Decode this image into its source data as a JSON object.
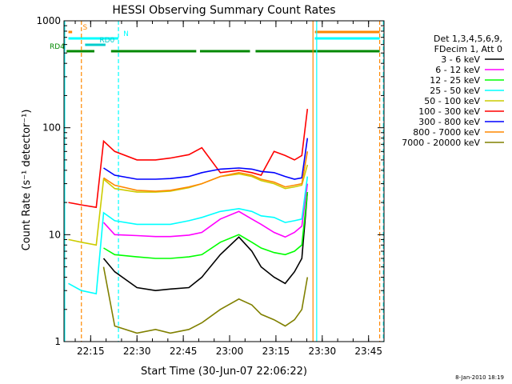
{
  "chart_data": {
    "type": "line",
    "title": "HESSI Observing Summary Count Rates",
    "xlabel": "Start Time (30-Jun-07 22:06:22)",
    "ylabel": "Count Rate (s⁻¹ detector⁻¹)",
    "xlim": [
      22.1061,
      23.8333
    ],
    "ylim": [
      1,
      1000
    ],
    "yscale": "log",
    "x_ticks": [
      "22:15",
      "22:30",
      "22:45",
      "23:00",
      "23:15",
      "23:30",
      "23:45"
    ],
    "x_tick_values": [
      22.25,
      22.5,
      22.75,
      23.0,
      23.25,
      23.5,
      23.75
    ],
    "y_ticks": [
      "1",
      "10",
      "100",
      "1000"
    ],
    "y_tick_values": [
      1,
      10,
      100,
      1000
    ],
    "legend": {
      "placement": "right",
      "header": [
        "Det 1,3,4,5,6,9,",
        "FDecim 1, Att 0"
      ]
    },
    "footer_date": "8-Jan-2010 18:19",
    "x": [
      22.13,
      22.2,
      22.28,
      22.32,
      22.38,
      22.5,
      22.6,
      22.68,
      22.78,
      22.85,
      22.95,
      23.05,
      23.12,
      23.17,
      23.24,
      23.3,
      23.35,
      23.39,
      23.42
    ],
    "series": [
      {
        "name": "3 - 6 keV",
        "color": "#000000",
        "values": [
          null,
          null,
          null,
          6.0,
          4.5,
          3.2,
          3.0,
          3.1,
          3.2,
          4.0,
          6.5,
          9.5,
          7.0,
          5.0,
          4.0,
          3.5,
          4.5,
          6.0,
          25.0
        ]
      },
      {
        "name": "6 - 12 keV",
        "color": "#ff00ff",
        "values": [
          null,
          null,
          null,
          13.0,
          10.0,
          9.8,
          9.6,
          9.6,
          9.9,
          10.5,
          14.0,
          16.5,
          14.0,
          12.5,
          10.5,
          9.5,
          10.5,
          12.0,
          30.0
        ]
      },
      {
        "name": "12 - 25 keV",
        "color": "#00ff00",
        "values": [
          null,
          null,
          null,
          7.5,
          6.5,
          6.2,
          6.0,
          6.0,
          6.2,
          6.5,
          8.5,
          10.0,
          8.5,
          7.5,
          6.8,
          6.5,
          7.0,
          8.0,
          25.0
        ]
      },
      {
        "name": "25 - 50 keV",
        "color": "#00ffff",
        "values": [
          3.5,
          3.0,
          2.8,
          16.0,
          13.5,
          12.5,
          12.5,
          12.5,
          13.5,
          14.5,
          16.5,
          17.5,
          16.5,
          15.0,
          14.5,
          13.0,
          13.5,
          14.0,
          35.0
        ]
      },
      {
        "name": "50 - 100 keV",
        "color": "#cccc00",
        "values": [
          9.0,
          8.5,
          8.0,
          33.0,
          27.0,
          25.0,
          25.0,
          25.5,
          27.5,
          30.0,
          35.0,
          37.0,
          35.0,
          32.0,
          30.0,
          27.0,
          28.0,
          29.0,
          45.0
        ]
      },
      {
        "name": "100 - 300 keV",
        "color": "#ff0000",
        "values": [
          20.0,
          19.0,
          18.0,
          75.0,
          60.0,
          50.0,
          50.0,
          52.0,
          56.0,
          65.0,
          38.0,
          40.0,
          38.0,
          36.0,
          60.0,
          55.0,
          50.0,
          55.0,
          150.0
        ]
      },
      {
        "name": "300 - 800 keV",
        "color": "#0000ff",
        "values": [
          null,
          null,
          null,
          42.0,
          36.0,
          33.0,
          33.0,
          33.5,
          35.0,
          38.0,
          41.0,
          42.0,
          41.0,
          39.0,
          38.0,
          35.0,
          33.0,
          34.0,
          80.0
        ]
      },
      {
        "name": "800 - 7000 keV",
        "color": "#ff8800",
        "values": [
          null,
          null,
          null,
          34.0,
          29.0,
          26.0,
          25.5,
          26.0,
          28.0,
          30.0,
          35.0,
          38.0,
          36.0,
          33.0,
          31.0,
          28.0,
          29.0,
          30.0,
          60.0
        ]
      },
      {
        "name": "7000 - 20000 keV",
        "color": "#808000",
        "values": [
          null,
          null,
          null,
          5.0,
          1.4,
          1.2,
          1.3,
          1.2,
          1.3,
          1.5,
          2.0,
          2.5,
          2.2,
          1.8,
          1.6,
          1.4,
          1.6,
          2.0,
          4.0
        ]
      }
    ],
    "markers": [
      {
        "label": "S",
        "color": "#ff8800",
        "segments": [
          [
            22.13,
            22.15
          ],
          [
            23.46,
            23.81
          ]
        ],
        "level": 1
      },
      {
        "label": "N",
        "color": "#00ffff",
        "segments": [
          [
            22.13,
            22.4
          ],
          [
            23.46,
            23.81
          ]
        ],
        "level": 2
      },
      {
        "label": "RD0",
        "color": "#00cccc",
        "segments": [
          [
            22.22,
            22.33
          ]
        ],
        "level": 3
      },
      {
        "label": "RD4",
        "color": "#008800",
        "segments": [
          [
            22.12,
            22.27
          ],
          [
            22.36,
            22.82
          ],
          [
            22.84,
            23.11
          ],
          [
            23.14,
            23.81
          ]
        ],
        "level": 4
      }
    ],
    "vlines": [
      {
        "x": 22.11,
        "color": "#00ffff",
        "style": "solid"
      },
      {
        "x": 22.2,
        "color": "#ff8800",
        "style": "dashed"
      },
      {
        "x": 22.4,
        "color": "#00ffff",
        "style": "dashed"
      },
      {
        "x": 23.45,
        "color": "#ff8800",
        "style": "solid"
      },
      {
        "x": 23.47,
        "color": "#00ffff",
        "style": "solid"
      },
      {
        "x": 23.81,
        "color": "#ff8800",
        "style": "dashed"
      },
      {
        "x": 23.83,
        "color": "#00ffff",
        "style": "dashed"
      }
    ]
  }
}
